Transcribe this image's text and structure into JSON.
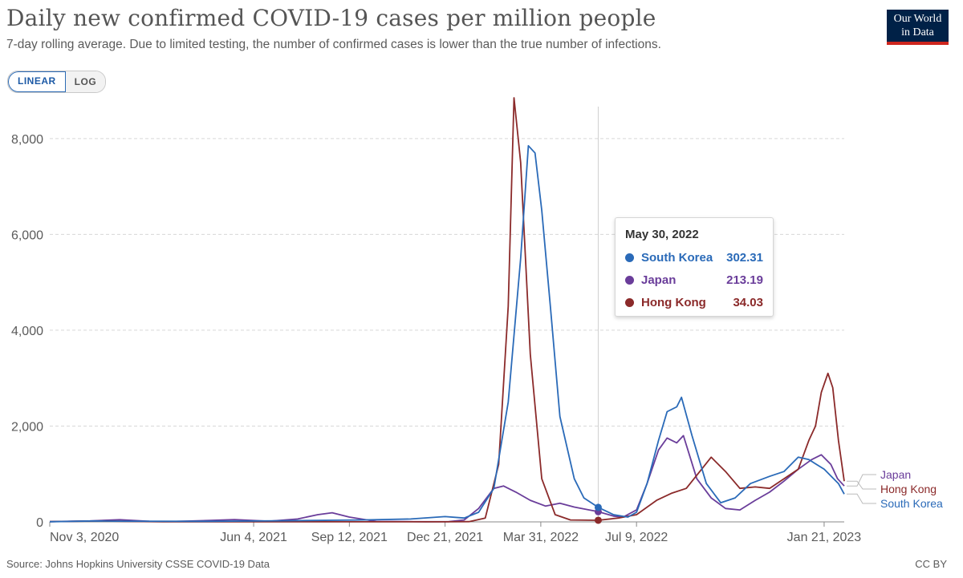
{
  "header": {
    "title": "Daily new confirmed COVID-19 cases per million people",
    "subtitle": "7-day rolling average. Due to limited testing, the number of confirmed cases is lower than the true number of infections.",
    "logo_line1": "Our World",
    "logo_line2": "in Data"
  },
  "controls": {
    "linear_label": "LINEAR",
    "log_label": "LOG",
    "active": "LINEAR"
  },
  "tooltip": {
    "date": "May 30, 2022",
    "rows": [
      {
        "name": "South Korea",
        "value": "302.31",
        "color": "#2a6ab8"
      },
      {
        "name": "Japan",
        "value": "213.19",
        "color": "#6a3d9a"
      },
      {
        "name": "Hong Kong",
        "value": "34.03",
        "color": "#8b2a2a"
      }
    ]
  },
  "footer": {
    "source": "Source: Johns Hopkins University CSSE COVID-19 Data",
    "license": "CC BY"
  },
  "chart_data": {
    "type": "line",
    "x_start": "2020-11-03",
    "x_end": "2023-02-11",
    "hover_date": "2022-05-30",
    "ylim": [
      0,
      8800
    ],
    "y_ticks": [
      0,
      2000,
      4000,
      6000,
      8000
    ],
    "y_tick_labels": [
      "0",
      "2,000",
      "4,000",
      "6,000",
      "8,000"
    ],
    "x_tick_dates": [
      "2020-11-03",
      "2021-06-04",
      "2021-09-12",
      "2021-12-21",
      "2022-03-31",
      "2022-07-09",
      "2023-01-21"
    ],
    "x_tick_labels": [
      "Nov 3, 2020",
      "Jun 4, 2021",
      "Sep 12, 2021",
      "Dec 21, 2021",
      "Mar 31, 2022",
      "Jul 9, 2022",
      "Jan 21, 2023"
    ],
    "grid": true,
    "legend_position": "right end labels",
    "series": [
      {
        "name": "Japan",
        "color": "#6a3d9a",
        "points": [
          [
            "2020-11-03",
            5
          ],
          [
            "2020-12-15",
            20
          ],
          [
            "2021-01-15",
            45
          ],
          [
            "2021-02-15",
            12
          ],
          [
            "2021-03-15",
            10
          ],
          [
            "2021-04-20",
            30
          ],
          [
            "2021-05-15",
            48
          ],
          [
            "2021-06-20",
            15
          ],
          [
            "2021-07-20",
            60
          ],
          [
            "2021-08-10",
            150
          ],
          [
            "2021-08-25",
            190
          ],
          [
            "2021-09-12",
            100
          ],
          [
            "2021-10-10",
            10
          ],
          [
            "2021-12-01",
            3
          ],
          [
            "2021-12-25",
            5
          ],
          [
            "2022-01-10",
            40
          ],
          [
            "2022-01-25",
            280
          ],
          [
            "2022-02-10",
            700
          ],
          [
            "2022-02-20",
            750
          ],
          [
            "2022-03-05",
            620
          ],
          [
            "2022-03-20",
            450
          ],
          [
            "2022-04-05",
            330
          ],
          [
            "2022-04-20",
            390
          ],
          [
            "2022-05-05",
            310
          ],
          [
            "2022-05-30",
            213.19
          ],
          [
            "2022-06-15",
            120
          ],
          [
            "2022-06-25",
            100
          ],
          [
            "2022-07-09",
            250
          ],
          [
            "2022-07-20",
            800
          ],
          [
            "2022-08-01",
            1500
          ],
          [
            "2022-08-10",
            1750
          ],
          [
            "2022-08-20",
            1650
          ],
          [
            "2022-08-27",
            1800
          ],
          [
            "2022-09-10",
            900
          ],
          [
            "2022-09-25",
            500
          ],
          [
            "2022-10-10",
            280
          ],
          [
            "2022-10-25",
            250
          ],
          [
            "2022-11-10",
            450
          ],
          [
            "2022-11-25",
            620
          ],
          [
            "2022-12-10",
            850
          ],
          [
            "2022-12-25",
            1100
          ],
          [
            "2023-01-08",
            1300
          ],
          [
            "2023-01-18",
            1400
          ],
          [
            "2023-01-28",
            1200
          ],
          [
            "2023-02-04",
            900
          ],
          [
            "2023-02-11",
            750
          ]
        ]
      },
      {
        "name": "Hong Kong",
        "color": "#8b2a2a",
        "points": [
          [
            "2020-11-03",
            5
          ],
          [
            "2020-12-10",
            15
          ],
          [
            "2020-12-25",
            20
          ],
          [
            "2021-01-20",
            12
          ],
          [
            "2021-03-01",
            3
          ],
          [
            "2021-06-04",
            1
          ],
          [
            "2021-12-21",
            1
          ],
          [
            "2022-01-15",
            5
          ],
          [
            "2022-02-01",
            80
          ],
          [
            "2022-02-15",
            1200
          ],
          [
            "2022-02-25",
            4500
          ],
          [
            "2022-03-03",
            8850
          ],
          [
            "2022-03-10",
            7500
          ],
          [
            "2022-03-20",
            3500
          ],
          [
            "2022-04-01",
            900
          ],
          [
            "2022-04-15",
            150
          ],
          [
            "2022-05-01",
            40
          ],
          [
            "2022-05-30",
            34.03
          ],
          [
            "2022-06-20",
            80
          ],
          [
            "2022-07-09",
            150
          ],
          [
            "2022-07-30",
            450
          ],
          [
            "2022-08-15",
            600
          ],
          [
            "2022-08-30",
            700
          ],
          [
            "2022-09-15",
            1100
          ],
          [
            "2022-09-25",
            1350
          ],
          [
            "2022-10-10",
            1050
          ],
          [
            "2022-10-25",
            700
          ],
          [
            "2022-11-10",
            730
          ],
          [
            "2022-11-25",
            700
          ],
          [
            "2022-12-10",
            900
          ],
          [
            "2022-12-25",
            1100
          ],
          [
            "2023-01-05",
            1700
          ],
          [
            "2023-01-12",
            2000
          ],
          [
            "2023-01-18",
            2700
          ],
          [
            "2023-01-25",
            3100
          ],
          [
            "2023-01-30",
            2800
          ],
          [
            "2023-02-05",
            1700
          ],
          [
            "2023-02-11",
            850
          ]
        ]
      },
      {
        "name": "South Korea",
        "color": "#2a6ab8",
        "points": [
          [
            "2020-11-03",
            3
          ],
          [
            "2020-12-20",
            20
          ],
          [
            "2021-01-10",
            15
          ],
          [
            "2021-04-15",
            12
          ],
          [
            "2021-07-15",
            25
          ],
          [
            "2021-09-25",
            40
          ],
          [
            "2021-11-15",
            60
          ],
          [
            "2021-12-21",
            110
          ],
          [
            "2022-01-10",
            80
          ],
          [
            "2022-01-25",
            200
          ],
          [
            "2022-02-10",
            700
          ],
          [
            "2022-02-25",
            2500
          ],
          [
            "2022-03-10",
            5500
          ],
          [
            "2022-03-18",
            7850
          ],
          [
            "2022-03-25",
            7700
          ],
          [
            "2022-04-01",
            6500
          ],
          [
            "2022-04-10",
            4500
          ],
          [
            "2022-04-20",
            2200
          ],
          [
            "2022-05-05",
            900
          ],
          [
            "2022-05-15",
            500
          ],
          [
            "2022-05-30",
            302.31
          ],
          [
            "2022-06-15",
            150
          ],
          [
            "2022-06-30",
            100
          ],
          [
            "2022-07-09",
            200
          ],
          [
            "2022-07-20",
            800
          ],
          [
            "2022-08-01",
            1700
          ],
          [
            "2022-08-10",
            2300
          ],
          [
            "2022-08-20",
            2400
          ],
          [
            "2022-08-25",
            2600
          ],
          [
            "2022-09-05",
            1800
          ],
          [
            "2022-09-20",
            800
          ],
          [
            "2022-10-05",
            400
          ],
          [
            "2022-10-20",
            500
          ],
          [
            "2022-11-05",
            800
          ],
          [
            "2022-11-25",
            950
          ],
          [
            "2022-12-10",
            1050
          ],
          [
            "2022-12-25",
            1350
          ],
          [
            "2023-01-05",
            1300
          ],
          [
            "2023-01-21",
            1100
          ],
          [
            "2023-02-05",
            800
          ],
          [
            "2023-02-11",
            580
          ]
        ]
      }
    ]
  }
}
